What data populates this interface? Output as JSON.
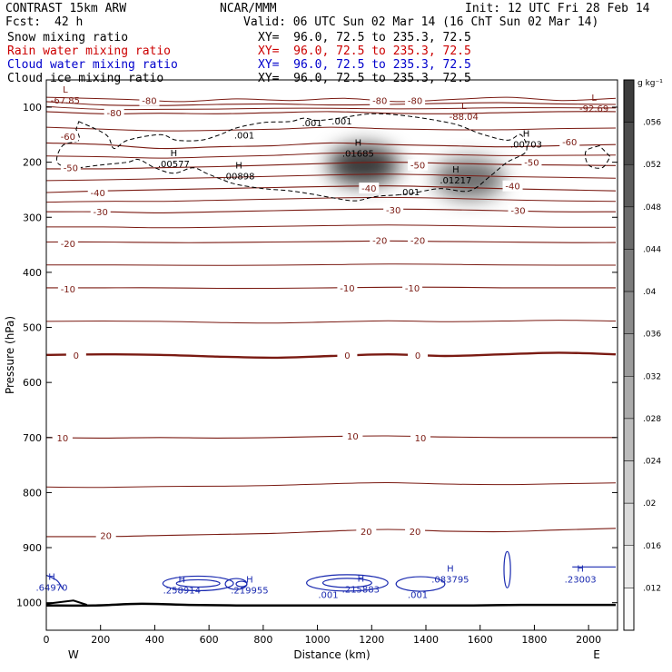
{
  "header": {
    "model": "CONTRAST 15km ARW",
    "org": "NCAR/MMM",
    "init": "Init: 12 UTC Fri 28 Feb 14",
    "fcst_label": "Fcst:",
    "fcst_value": "42 h",
    "valid": "Valid: 06 UTC Sun 02 Mar 14 (16 ChT Sun 02 Mar 14)"
  },
  "legend": [
    {
      "name": "Snow mixing ratio",
      "xy": "XY=  96.0, 72.5 to 235.3, 72.5",
      "color": "#000000"
    },
    {
      "name": "Rain water mixing ratio",
      "xy": "XY=  96.0, 72.5 to 235.3, 72.5",
      "color": "#cc0000"
    },
    {
      "name": "Cloud water mixing ratio",
      "xy": "XY=  96.0, 72.5 to 235.3, 72.5",
      "color": "#0000cc"
    },
    {
      "name": "Cloud ice mixing ratio",
      "xy": "XY=  96.0, 72.5 to 235.3, 72.5",
      "color": "#000000"
    }
  ],
  "colors": {
    "temperature": "#7a1a12",
    "cloud_water": "#1a2ab0",
    "cloud_ice": "#000000"
  },
  "chart_data": {
    "type": "cross-section contour",
    "xlabel": "Distance (km)",
    "ylabel": "Pressure (hPa)",
    "xlim": [
      0,
      2100
    ],
    "ylim": [
      1050,
      50
    ],
    "x_ticks": [
      0,
      200,
      400,
      600,
      800,
      1000,
      1200,
      1400,
      1600,
      1800,
      2000
    ],
    "y_ticks": [
      100,
      200,
      300,
      400,
      500,
      600,
      700,
      800,
      900,
      1000
    ],
    "x_end_labels": {
      "left": "W",
      "right": "E"
    },
    "colorbar": {
      "unit": "g kg⁻¹",
      "levels": [
        0.012,
        0.016,
        0.02,
        0.024,
        0.028,
        0.032,
        0.036,
        0.04,
        0.044,
        0.048,
        0.052,
        0.056
      ],
      "labels": [
        ".012",
        ".016",
        ".02",
        ".024",
        ".028",
        ".032",
        ".036",
        ".04",
        ".044",
        ".048",
        ".052",
        ".056"
      ]
    },
    "temperature_isotherms": [
      {
        "label": "-80",
        "p": [
          90,
          96,
          97,
          95,
          94,
          96,
          95,
          93,
          92,
          94,
          95
        ]
      },
      {
        "label": "-70",
        "p": [
          108,
          112,
          111,
          112,
          110,
          108,
          111,
          112,
          110,
          108,
          108
        ]
      },
      {
        "label": "-60",
        "p": [
          165,
          168,
          175,
          172,
          170,
          165,
          168,
          170,
          172,
          170,
          168
        ]
      },
      {
        "label": "-50",
        "p": [
          212,
          212,
          210,
          208,
          205,
          202,
          200,
          202,
          204,
          205,
          206
        ]
      },
      {
        "label": "-40",
        "p": [
          255,
          252,
          250,
          248,
          246,
          244,
          243,
          245,
          248,
          250,
          252
        ]
      },
      {
        "label": "-30",
        "p": [
          290,
          290,
          292,
          290,
          288,
          286,
          285,
          286,
          288,
          290,
          290
        ]
      },
      {
        "label": "-20",
        "p": [
          345,
          345,
          346,
          346,
          345,
          344,
          343,
          344,
          345,
          346,
          346
        ]
      },
      {
        "label": "-10",
        "p": [
          428,
          428,
          428,
          429,
          429,
          428,
          427,
          427,
          428,
          428,
          428
        ]
      },
      {
        "label": "0",
        "p": [
          550,
          549,
          550,
          553,
          555,
          552,
          549,
          552,
          549,
          546,
          549
        ]
      },
      {
        "label": "10",
        "p": [
          700,
          701,
          700,
          701,
          700,
          698,
          697,
          699,
          700,
          700,
          700
        ]
      },
      {
        "label": "20",
        "p": [
          880,
          880,
          878,
          876,
          874,
          870,
          867,
          870,
          871,
          868,
          865
        ]
      }
    ],
    "temperature_labels": [
      {
        "text": "-80",
        "x": 380,
        "p": 88
      },
      {
        "text": "-80",
        "x": 1230,
        "p": 88
      },
      {
        "text": "-80",
        "x": 1360,
        "p": 88
      },
      {
        "text": "-80",
        "x": 250,
        "p": 110
      },
      {
        "text": "-60",
        "x": 80,
        "p": 153
      },
      {
        "text": "-60",
        "x": 1930,
        "p": 163
      },
      {
        "text": "-50",
        "x": 90,
        "p": 210
      },
      {
        "text": "-50",
        "x": 1370,
        "p": 205
      },
      {
        "text": "-50",
        "x": 1790,
        "p": 200
      },
      {
        "text": "-40",
        "x": 190,
        "p": 255
      },
      {
        "text": "-40",
        "x": 1190,
        "p": 247
      },
      {
        "text": "-40",
        "x": 1720,
        "p": 243
      },
      {
        "text": "-30",
        "x": 200,
        "p": 290
      },
      {
        "text": "-30",
        "x": 1280,
        "p": 286
      },
      {
        "text": "-30",
        "x": 1740,
        "p": 287
      },
      {
        "text": "-20",
        "x": 80,
        "p": 347
      },
      {
        "text": "-20",
        "x": 1230,
        "p": 342
      },
      {
        "text": "-20",
        "x": 1370,
        "p": 342
      },
      {
        "text": "-10",
        "x": 80,
        "p": 430
      },
      {
        "text": "-10",
        "x": 1110,
        "p": 428
      },
      {
        "text": "-10",
        "x": 1350,
        "p": 428
      },
      {
        "text": "0",
        "x": 110,
        "p": 550
      },
      {
        "text": "0",
        "x": 1110,
        "p": 550
      },
      {
        "text": "0",
        "x": 1370,
        "p": 550
      },
      {
        "text": "10",
        "x": 60,
        "p": 700
      },
      {
        "text": "10",
        "x": 1130,
        "p": 697
      },
      {
        "text": "10",
        "x": 1380,
        "p": 700
      },
      {
        "text": "20",
        "x": 220,
        "p": 878
      },
      {
        "text": "20",
        "x": 1180,
        "p": 870
      },
      {
        "text": "20",
        "x": 1360,
        "p": 870
      }
    ],
    "snow_maxima": [
      {
        "x": 1170,
        "p": 205,
        "value": 0.01685,
        "label": ".01685"
      },
      {
        "x": 1560,
        "p": 230,
        "value": 0.01217,
        "label": ".01217"
      }
    ],
    "extrema_labels": [
      {
        "letter": "L",
        "x": 70,
        "p": 80,
        "value": "-67.85",
        "color": "#7a1a12"
      },
      {
        "letter": "L",
        "x": 1540,
        "p": 110,
        "value": "-88.04",
        "color": "#7a1a12"
      },
      {
        "letter": "L",
        "x": 2020,
        "p": 95,
        "value": "-92.69",
        "color": "#7a1a12"
      },
      {
        "letter": "H",
        "x": 470,
        "p": 196,
        "value": ".00577",
        "color": "#000000"
      },
      {
        "letter": "H",
        "x": 710,
        "p": 218,
        "value": ".00898",
        "color": "#000000"
      },
      {
        "letter": "H",
        "x": 1150,
        "p": 177,
        "value": ".01685",
        "color": "#000000"
      },
      {
        "letter": "H",
        "x": 1510,
        "p": 225,
        "value": ".01217",
        "color": "#000000"
      },
      {
        "letter": "H",
        "x": 1770,
        "p": 160,
        "value": ".00703",
        "color": "#000000"
      },
      {
        "letter": "H",
        "x": 20,
        "p": 965,
        "value": ".64970",
        "color": "#1a2ab0"
      },
      {
        "letter": "H",
        "x": 500,
        "p": 970,
        "value": ".258914",
        "color": "#1a2ab0"
      },
      {
        "letter": "H",
        "x": 750,
        "p": 970,
        "value": ".219955",
        "color": "#1a2ab0"
      },
      {
        "letter": "H",
        "x": 1160,
        "p": 968,
        "value": ".215883",
        "color": "#1a2ab0"
      },
      {
        "letter": "H",
        "x": 1490,
        "p": 950,
        "value": ".083795",
        "color": "#1a2ab0"
      },
      {
        "letter": "H",
        "x": 1970,
        "p": 950,
        "value": ".23003",
        "color": "#1a2ab0"
      }
    ],
    "contour_value_labels": [
      {
        "text": ".001",
        "x": 980,
        "p": 128,
        "color": "#000000"
      },
      {
        "text": ".001",
        "x": 1090,
        "p": 125,
        "color": "#000000"
      },
      {
        "text": ".001",
        "x": 730,
        "p": 150,
        "color": "#000000"
      },
      {
        "text": ".001",
        "x": 1340,
        "p": 253,
        "color": "#000000"
      },
      {
        "text": ".001",
        "x": 1040,
        "p": 985,
        "color": "#1a2ab0"
      },
      {
        "text": ".001",
        "x": 1370,
        "p": 985,
        "color": "#1a2ab0"
      }
    ],
    "ground_pressure": [
      1005,
      1005,
      1002,
      1004,
      1005,
      1005,
      1005,
      1005,
      1005,
      1005,
      1004,
      1004,
      1004
    ]
  }
}
